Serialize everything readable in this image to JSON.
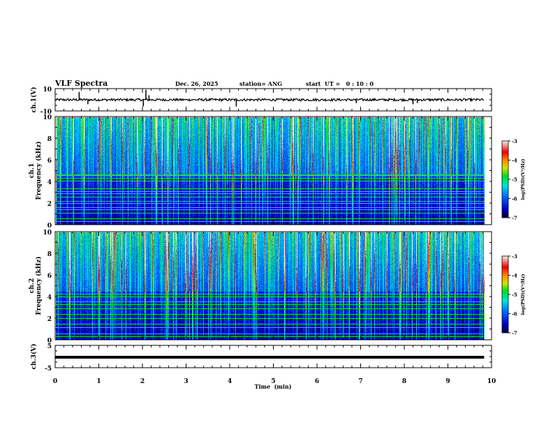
{
  "header": {
    "title": "VLF Spectra",
    "date": "Dec. 26, 2025",
    "station": "station= ANG",
    "start": "start  UT =   0 : 10 : 0"
  },
  "chart_data": [
    {
      "type": "line",
      "name": "ch1",
      "ylabel": "ch.1(V)",
      "ylim": [
        -10,
        10
      ],
      "yticks": [
        "10",
        "-10"
      ],
      "baseline": 0,
      "spikes": [
        [
          0.55,
          7
        ],
        [
          0.75,
          -4
        ],
        [
          2.02,
          -6
        ],
        [
          2.08,
          9
        ],
        [
          2.15,
          4
        ],
        [
          4.15,
          -6
        ],
        [
          6.9,
          -3
        ],
        [
          8.2,
          -4
        ],
        [
          8.3,
          -3
        ]
      ]
    },
    {
      "type": "heatmap",
      "name": "ch1-spectrogram",
      "ylabel_top": "ch.1",
      "ylabel": "Frequency (kHz)",
      "ylim": [
        0,
        10
      ],
      "yticks": [
        "0",
        "2",
        "4",
        "6",
        "8",
        "10"
      ],
      "colorbar": {
        "label": "log(PSD)(V²/Hz)",
        "range": [
          -7,
          -3
        ],
        "ticks": [
          "-3",
          "-4",
          "-5",
          "-6",
          "-7"
        ]
      },
      "tone_lines_khz": [
        0.3,
        0.6,
        1.1,
        1.4,
        1.65,
        2.0,
        2.2,
        2.6,
        2.9,
        3.1,
        3.4,
        4.1,
        4.35,
        4.6,
        4.7
      ]
    },
    {
      "type": "heatmap",
      "name": "ch2-spectrogram",
      "ylabel_top": "ch.2",
      "ylabel": "Frequency (kHz)",
      "ylim": [
        0,
        10
      ],
      "yticks": [
        "0",
        "2",
        "4",
        "6",
        "8",
        "10"
      ],
      "colorbar": {
        "label": "log(PSD)(V²/Hz)",
        "range": [
          -7,
          -3
        ],
        "ticks": [
          "-3",
          "-4",
          "-5",
          "-6",
          "-7"
        ]
      },
      "tone_lines_khz": [
        0.3,
        0.6,
        1.2,
        1.5,
        2.0,
        2.4,
        2.9,
        3.3,
        3.6,
        4.0,
        4.3
      ]
    },
    {
      "type": "line",
      "name": "ch3",
      "ylabel": "ch.3(V)",
      "ylim": [
        -5,
        5
      ],
      "yticks": [
        "5",
        "-5"
      ],
      "baseline": -0.3
    }
  ],
  "xaxis": {
    "label": "Time  (min)",
    "xlim": [
      0,
      10
    ],
    "data_end": 9.83,
    "ticks": [
      "0",
      "1",
      "2",
      "3",
      "4",
      "5",
      "6",
      "7",
      "8",
      "9",
      "10"
    ]
  }
}
